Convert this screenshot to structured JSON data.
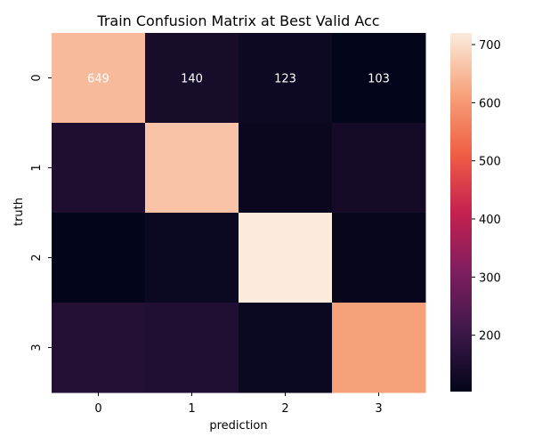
{
  "chart_data": {
    "type": "heatmap",
    "title": "Train Confusion Matrix at Best Valid Acc",
    "xlabel": "prediction",
    "ylabel": "truth",
    "x_categories": [
      "0",
      "1",
      "2",
      "3"
    ],
    "y_categories": [
      "0",
      "1",
      "2",
      "3"
    ],
    "values": [
      [
        649,
        140,
        123,
        103
      ],
      [
        150,
        662,
        115,
        135
      ],
      [
        103,
        118,
        720,
        110
      ],
      [
        162,
        155,
        118,
        612
      ]
    ],
    "annotations": [
      [
        "649",
        "140",
        "123",
        "103"
      ],
      [
        "",
        "",
        "",
        ""
      ],
      [
        "",
        "",
        "",
        ""
      ],
      [
        "",
        "",
        "",
        ""
      ]
    ],
    "colorbar": {
      "min": 103,
      "max": 720,
      "ticks": [
        "200",
        "300",
        "400",
        "500",
        "600",
        "700"
      ],
      "tick_values": [
        200,
        300,
        400,
        500,
        600,
        700
      ]
    },
    "colormap": "rocket",
    "colormap_stops": [
      "#03051a",
      "#3d1849",
      "#7e1e5f",
      "#c6214f",
      "#f06045",
      "#f6a47c",
      "#faebdd"
    ]
  }
}
